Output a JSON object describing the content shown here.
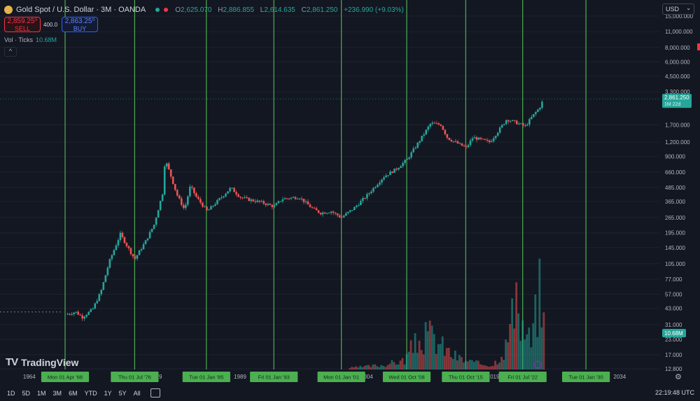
{
  "header": {
    "symbol": "Gold Spot / U.S. Dollar · 3M · OANDA",
    "open_label": "O",
    "open": "2,625.070",
    "high_label": "H",
    "high": "2,886.855",
    "low_label": "L",
    "low": "2,614.635",
    "close_label": "C",
    "close": "2,861.250",
    "change": "+236.990 (+9.03%)"
  },
  "trade": {
    "sell_price": "2,859.25⁰",
    "sell_label": "SELL",
    "spread": "400.0",
    "buy_price": "2,863.25⁰",
    "buy_label": "BUY"
  },
  "volume_indicator": {
    "label": "Vol · Ticks",
    "value": "10.68M"
  },
  "currency_select": "USD",
  "branding": "TradingView",
  "timeframes": [
    "1D",
    "5D",
    "1M",
    "3M",
    "6M",
    "YTD",
    "1Y",
    "5Y",
    "All"
  ],
  "clock": "22:19:48 UTC",
  "colors": {
    "background": "#131722",
    "up": "#26a69a",
    "down": "#ef5350",
    "vline": "#4caf50",
    "date_label_bg": "#4caf50"
  },
  "chart_data": {
    "type": "candlestick",
    "y_scale": "log",
    "ylim": [
      12.8,
      19000
    ],
    "y_ticks": [
      "12.800",
      "17.000",
      "23.000",
      "31.000",
      "43.000",
      "57.000",
      "77.000",
      "105.000",
      "145.000",
      "195.000",
      "265.000",
      "365.000",
      "485.000",
      "660.000",
      "900.000",
      "1,200.000",
      "1,700.000",
      "3,300.000",
      "4,500.000",
      "6,000.000",
      "8,000.000",
      "11,000.000",
      "15,000.000"
    ],
    "x_axis_labels": [
      "1964",
      "1979",
      "1989",
      "2004",
      "2019",
      "2034"
    ],
    "vertical_line_labels": [
      "Mon 01 Apr '68",
      "Thu 01 Jul '76",
      "Tue 01 Jan '85",
      "Fri 01 Jan '93",
      "Mon 01 Jan '01",
      "Wed 01 Oct '08",
      "Thu 01 Oct '15",
      "Fri 01 Jul '22",
      "Tue 01 Jan '30"
    ],
    "last_price_label": "2,861.250",
    "last_price_countdown": "1M 22d",
    "last_volume_label": "10.68M",
    "price_path": [
      {
        "year": 1968.3,
        "price": 38
      },
      {
        "year": 1969.5,
        "price": 40
      },
      {
        "year": 1970.3,
        "price": 36
      },
      {
        "year": 1971.5,
        "price": 42
      },
      {
        "year": 1972.5,
        "price": 60
      },
      {
        "year": 1973.5,
        "price": 110
      },
      {
        "year": 1974.8,
        "price": 190
      },
      {
        "year": 1976.5,
        "price": 115
      },
      {
        "year": 1977.8,
        "price": 165
      },
      {
        "year": 1978.8,
        "price": 230
      },
      {
        "year": 1979.8,
        "price": 430
      },
      {
        "year": 1980.1,
        "price": 850
      },
      {
        "year": 1980.7,
        "price": 640
      },
      {
        "year": 1981.5,
        "price": 420
      },
      {
        "year": 1982.4,
        "price": 310
      },
      {
        "year": 1983.1,
        "price": 500
      },
      {
        "year": 1983.8,
        "price": 400
      },
      {
        "year": 1985.1,
        "price": 300
      },
      {
        "year": 1986.5,
        "price": 380
      },
      {
        "year": 1987.9,
        "price": 480
      },
      {
        "year": 1989.0,
        "price": 400
      },
      {
        "year": 1990.0,
        "price": 380
      },
      {
        "year": 1991.5,
        "price": 360
      },
      {
        "year": 1993.0,
        "price": 330
      },
      {
        "year": 1994.0,
        "price": 385
      },
      {
        "year": 1996.0,
        "price": 400
      },
      {
        "year": 1997.5,
        "price": 320
      },
      {
        "year": 1998.5,
        "price": 290
      },
      {
        "year": 1999.8,
        "price": 300
      },
      {
        "year": 2001.0,
        "price": 265
      },
      {
        "year": 2002.5,
        "price": 320
      },
      {
        "year": 2004.0,
        "price": 410
      },
      {
        "year": 2006.0,
        "price": 600
      },
      {
        "year": 2007.5,
        "price": 700
      },
      {
        "year": 2008.8,
        "price": 850
      },
      {
        "year": 2010.0,
        "price": 1150
      },
      {
        "year": 2011.6,
        "price": 1750
      },
      {
        "year": 2012.8,
        "price": 1700
      },
      {
        "year": 2013.6,
        "price": 1300
      },
      {
        "year": 2015.8,
        "price": 1070
      },
      {
        "year": 2016.6,
        "price": 1320
      },
      {
        "year": 2018.6,
        "price": 1200
      },
      {
        "year": 2019.6,
        "price": 1500
      },
      {
        "year": 2020.6,
        "price": 1900
      },
      {
        "year": 2021.5,
        "price": 1800
      },
      {
        "year": 2022.8,
        "price": 1650
      },
      {
        "year": 2023.5,
        "price": 1950
      },
      {
        "year": 2024.5,
        "price": 2400
      },
      {
        "year": 2025.0,
        "price": 2861
      }
    ],
    "volume_path": [
      {
        "year": 2002,
        "rel": 0.02
      },
      {
        "year": 2006,
        "rel": 0.06
      },
      {
        "year": 2008.5,
        "rel": 0.12
      },
      {
        "year": 2009.5,
        "rel": 0.3
      },
      {
        "year": 2011.5,
        "rel": 0.45
      },
      {
        "year": 2012.5,
        "rel": 0.35
      },
      {
        "year": 2014,
        "rel": 0.2
      },
      {
        "year": 2015.5,
        "rel": 0.12
      },
      {
        "year": 2017,
        "rel": 0.08
      },
      {
        "year": 2019,
        "rel": 0.06
      },
      {
        "year": 2020.5,
        "rel": 0.3
      },
      {
        "year": 2021.5,
        "rel": 0.8
      },
      {
        "year": 2022.5,
        "rel": 0.55
      },
      {
        "year": 2023.5,
        "rel": 0.35
      },
      {
        "year": 2024.5,
        "rel": 1.0
      },
      {
        "year": 2025.0,
        "rel": 0.6
      }
    ]
  }
}
